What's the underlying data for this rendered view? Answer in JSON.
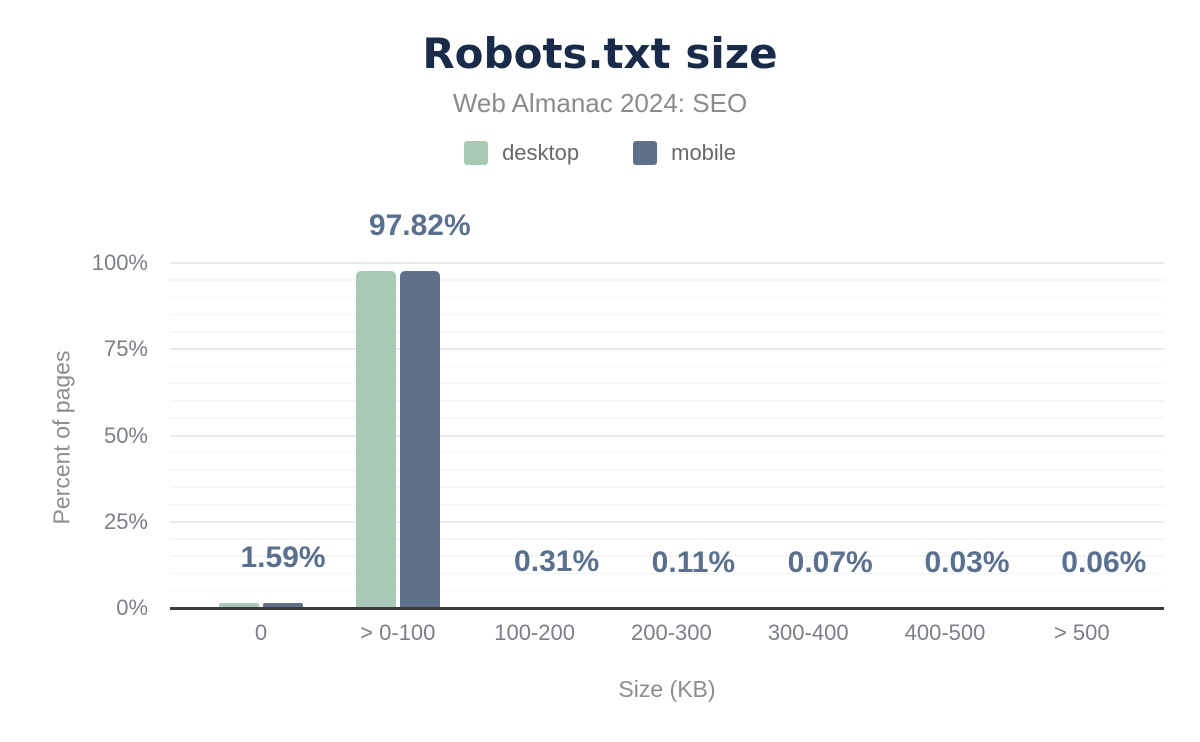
{
  "header": {
    "title": "Robots.txt size",
    "subtitle": "Web Almanac 2024: SEO"
  },
  "legend": {
    "items": [
      {
        "label": "desktop",
        "color": "#a8c9b6"
      },
      {
        "label": "mobile",
        "color": "#5f718a"
      }
    ]
  },
  "colors": {
    "title": "#1a2b49",
    "desktop": "#a8c9b6",
    "mobile": "#5f718a",
    "data_label": "#5a708e"
  },
  "chart_data": {
    "type": "bar",
    "title": "Robots.txt size",
    "subtitle": "Web Almanac 2024: SEO",
    "categories": [
      "0",
      "> 0-100",
      "100-200",
      "200-300",
      "300-400",
      "400-500",
      "> 500"
    ],
    "series": [
      {
        "name": "desktop",
        "color": "#a8c9b6",
        "values": [
          1.59,
          97.82,
          0.31,
          0.11,
          0.07,
          0.03,
          0.06
        ]
      },
      {
        "name": "mobile",
        "color": "#5f718a",
        "values": [
          1.59,
          97.82,
          0.31,
          0.11,
          0.07,
          0.03,
          0.06
        ]
      }
    ],
    "data_labels": [
      "1.59%",
      "97.82%",
      "0.31%",
      "0.11%",
      "0.07%",
      "0.03%",
      "0.06%"
    ],
    "data_labels_series": "mobile",
    "xlabel": "Size (KB)",
    "ylabel": "Percent of pages",
    "ylim": [
      0,
      100
    ],
    "yticks": [
      0,
      25,
      50,
      75,
      100
    ],
    "ytick_labels": [
      "0%",
      "25%",
      "50%",
      "75%",
      "100%"
    ],
    "minor_tick_step": 5,
    "grid": true,
    "legend_position": "top"
  }
}
